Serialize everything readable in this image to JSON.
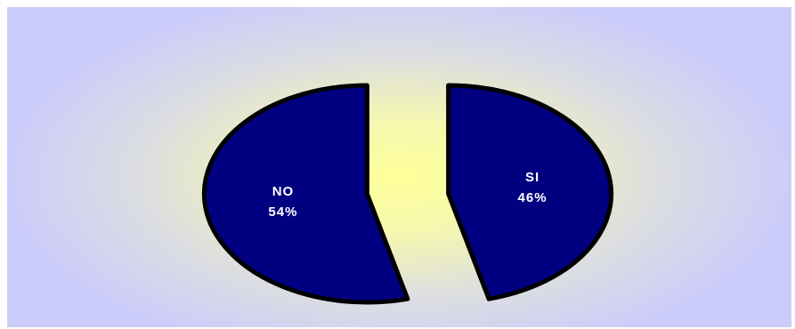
{
  "chart_data": {
    "type": "pie",
    "title": "",
    "categories": [
      "SI",
      "NO"
    ],
    "values": [
      46,
      54
    ],
    "labels": [
      {
        "name": "SI",
        "percent": "46%"
      },
      {
        "name": "NO",
        "percent": "54%"
      }
    ],
    "exploded": true,
    "legend": "none",
    "colors": {
      "slice_fill": "#000080",
      "slice_border": "#000000",
      "label_text": "#ffffff",
      "background_center": "#ffff99",
      "background_edge": "#ccccfa"
    }
  }
}
